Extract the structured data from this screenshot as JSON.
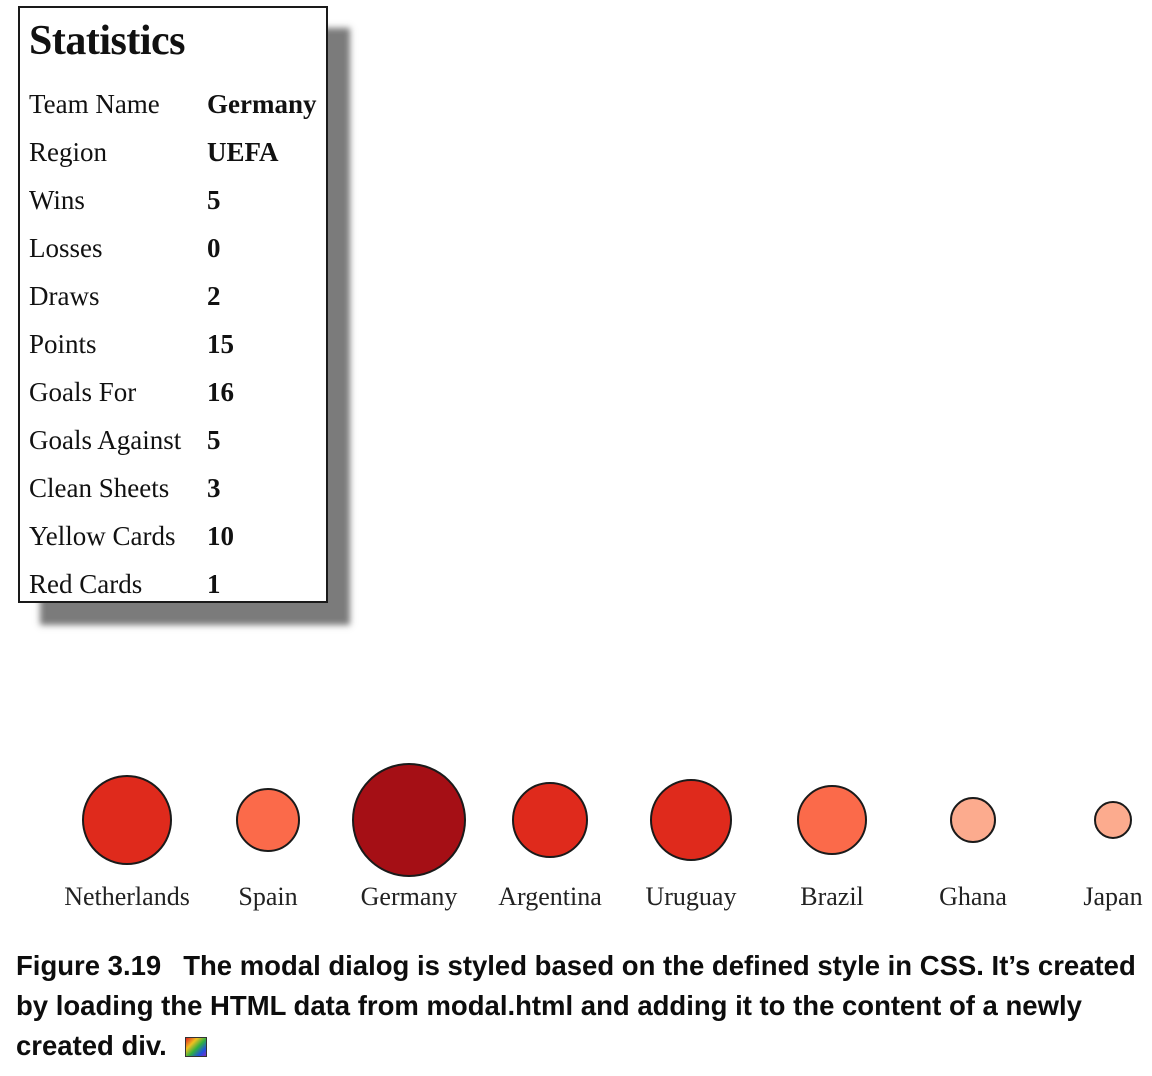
{
  "modal": {
    "title": "Statistics",
    "rows": [
      {
        "label": "Team Name",
        "value": "Germany"
      },
      {
        "label": "Region",
        "value": "UEFA"
      },
      {
        "label": "Wins",
        "value": "5"
      },
      {
        "label": "Losses",
        "value": "0"
      },
      {
        "label": "Draws",
        "value": "2"
      },
      {
        "label": "Points",
        "value": "15"
      },
      {
        "label": "Goals For",
        "value": "16"
      },
      {
        "label": "Goals Against",
        "value": "5"
      },
      {
        "label": "Clean Sheets",
        "value": "3"
      },
      {
        "label": "Yellow Cards",
        "value": "10"
      },
      {
        "label": "Red Cards",
        "value": "1"
      }
    ]
  },
  "teams": [
    {
      "name": "Netherlands",
      "color": "#df2a1c"
    },
    {
      "name": "Spain",
      "color": "#fb6a4a"
    },
    {
      "name": "Germany",
      "color": "#a50f15"
    },
    {
      "name": "Argentina",
      "color": "#df2a1c"
    },
    {
      "name": "Uruguay",
      "color": "#df2a1c"
    },
    {
      "name": "Brazil",
      "color": "#fb6a4a"
    },
    {
      "name": "Ghana",
      "color": "#fcab8e"
    },
    {
      "name": "Japan",
      "color": "#fcab8e"
    }
  ],
  "caption": {
    "label": "Figure 3.19",
    "text": "The modal dialog is styled based on the defined style in CSS. It’s created by loading the HTML data from modal.html and adding it to the content of a newly created div.",
    "icon": "color-figure-icon"
  }
}
